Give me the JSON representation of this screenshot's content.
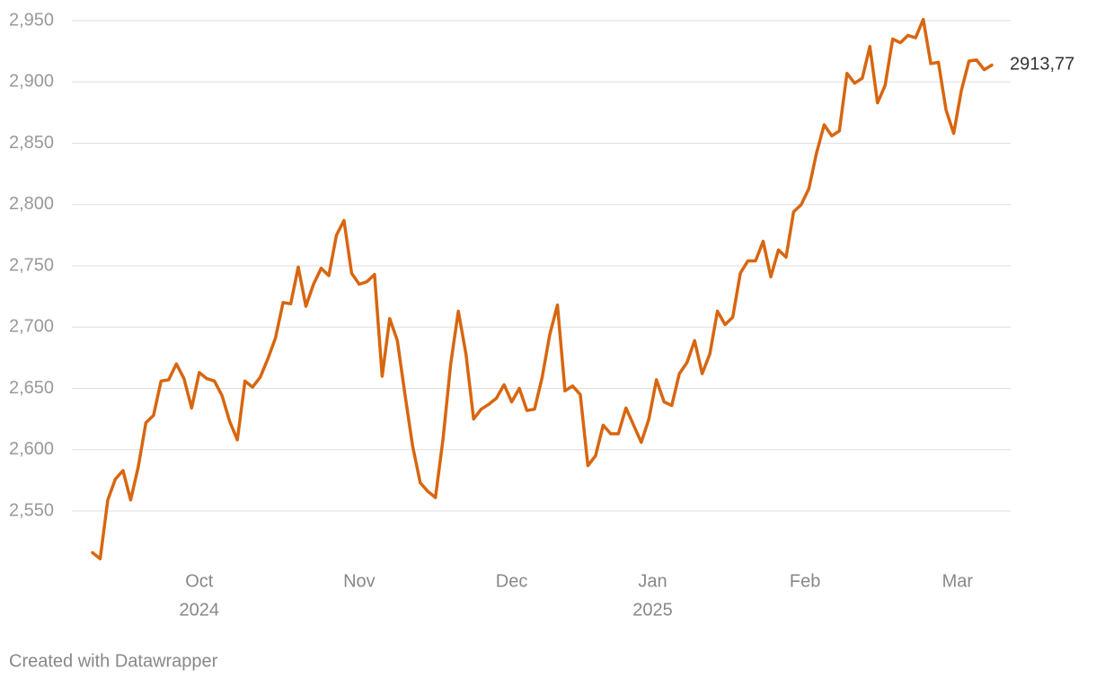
{
  "chart_data": {
    "type": "line",
    "series": [
      {
        "color": "#d8660f",
        "values": [
          2516,
          2511,
          2559,
          2576,
          2583,
          2559,
          2586,
          2622,
          2628,
          2656,
          2657,
          2670,
          2658,
          2634,
          2663,
          2658,
          2656,
          2644,
          2623,
          2608,
          2656,
          2651,
          2659,
          2674,
          2691,
          2720,
          2719,
          2749,
          2717,
          2735,
          2748,
          2742,
          2775,
          2787,
          2744,
          2735,
          2737,
          2743,
          2660,
          2707,
          2689,
          2645,
          2603,
          2573,
          2566,
          2561,
          2609,
          2670,
          2713,
          2678,
          2625,
          2633,
          2637,
          2642,
          2653,
          2639,
          2650,
          2632,
          2633,
          2659,
          2694,
          2718,
          2648,
          2652,
          2645,
          2587,
          2595,
          2620,
          2613,
          2613,
          2634,
          2620,
          2606,
          2625,
          2657,
          2639,
          2636,
          2662,
          2671,
          2689,
          2662,
          2678,
          2713,
          2702,
          2708,
          2744,
          2754,
          2754,
          2770,
          2741,
          2763,
          2757,
          2794,
          2800,
          2813,
          2842,
          2865,
          2856,
          2860,
          2907,
          2899,
          2903,
          2929,
          2883,
          2897,
          2935,
          2932,
          2938,
          2936,
          2951,
          2915,
          2916,
          2877,
          2858,
          2893,
          2917,
          2918,
          2910,
          2913.77
        ],
        "value_labels": [
          null,
          null,
          null,
          null,
          null,
          null,
          null,
          null,
          null,
          null,
          null,
          null,
          null,
          null,
          null,
          null,
          null,
          null,
          null,
          null,
          null,
          null,
          null,
          null,
          null,
          null,
          null,
          null,
          null,
          null,
          null,
          null,
          null,
          null,
          null,
          null,
          null,
          null,
          null,
          null,
          null,
          null,
          null,
          null,
          null,
          null,
          null,
          null,
          null,
          null,
          null,
          null,
          null,
          null,
          null,
          null,
          null,
          null,
          null,
          null,
          null,
          null,
          null,
          null,
          null,
          null,
          null,
          null,
          null,
          null,
          null,
          null,
          null,
          null,
          null,
          null,
          null,
          null,
          null,
          null,
          null,
          null,
          null,
          null,
          null,
          null,
          null,
          null,
          null,
          null,
          null,
          null,
          null,
          null,
          null,
          null,
          null,
          null,
          null,
          null,
          null,
          null,
          null,
          null,
          null,
          null,
          null,
          null,
          null,
          null,
          null,
          null,
          null,
          null,
          null,
          null,
          null,
          null,
          "2913,77"
        ]
      }
    ],
    "xlim": [
      0,
      118
    ],
    "xticks": [
      {
        "value": 14,
        "label": "Oct",
        "year": "2024"
      },
      {
        "value": 35,
        "label": "Nov"
      },
      {
        "value": 55,
        "label": "Dec"
      },
      {
        "value": 73.5,
        "label": "Jan",
        "year": "2025"
      },
      {
        "value": 93.5,
        "label": "Feb"
      },
      {
        "value": 113.5,
        "label": "Mar"
      }
    ],
    "ylim": [
      2500,
      2960
    ],
    "yticks": [
      {
        "value": 2550,
        "label": "2,550"
      },
      {
        "value": 2600,
        "label": "2,600"
      },
      {
        "value": 2650,
        "label": "2,650"
      },
      {
        "value": 2700,
        "label": "2,700"
      },
      {
        "value": 2750,
        "label": "2,750"
      },
      {
        "value": 2800,
        "label": "2,800"
      },
      {
        "value": 2850,
        "label": "2,850"
      },
      {
        "value": 2900,
        "label": "2,900"
      },
      {
        "value": 2950,
        "label": "2,950"
      }
    ],
    "grid": true,
    "footer": "Created with Datawrapper"
  }
}
